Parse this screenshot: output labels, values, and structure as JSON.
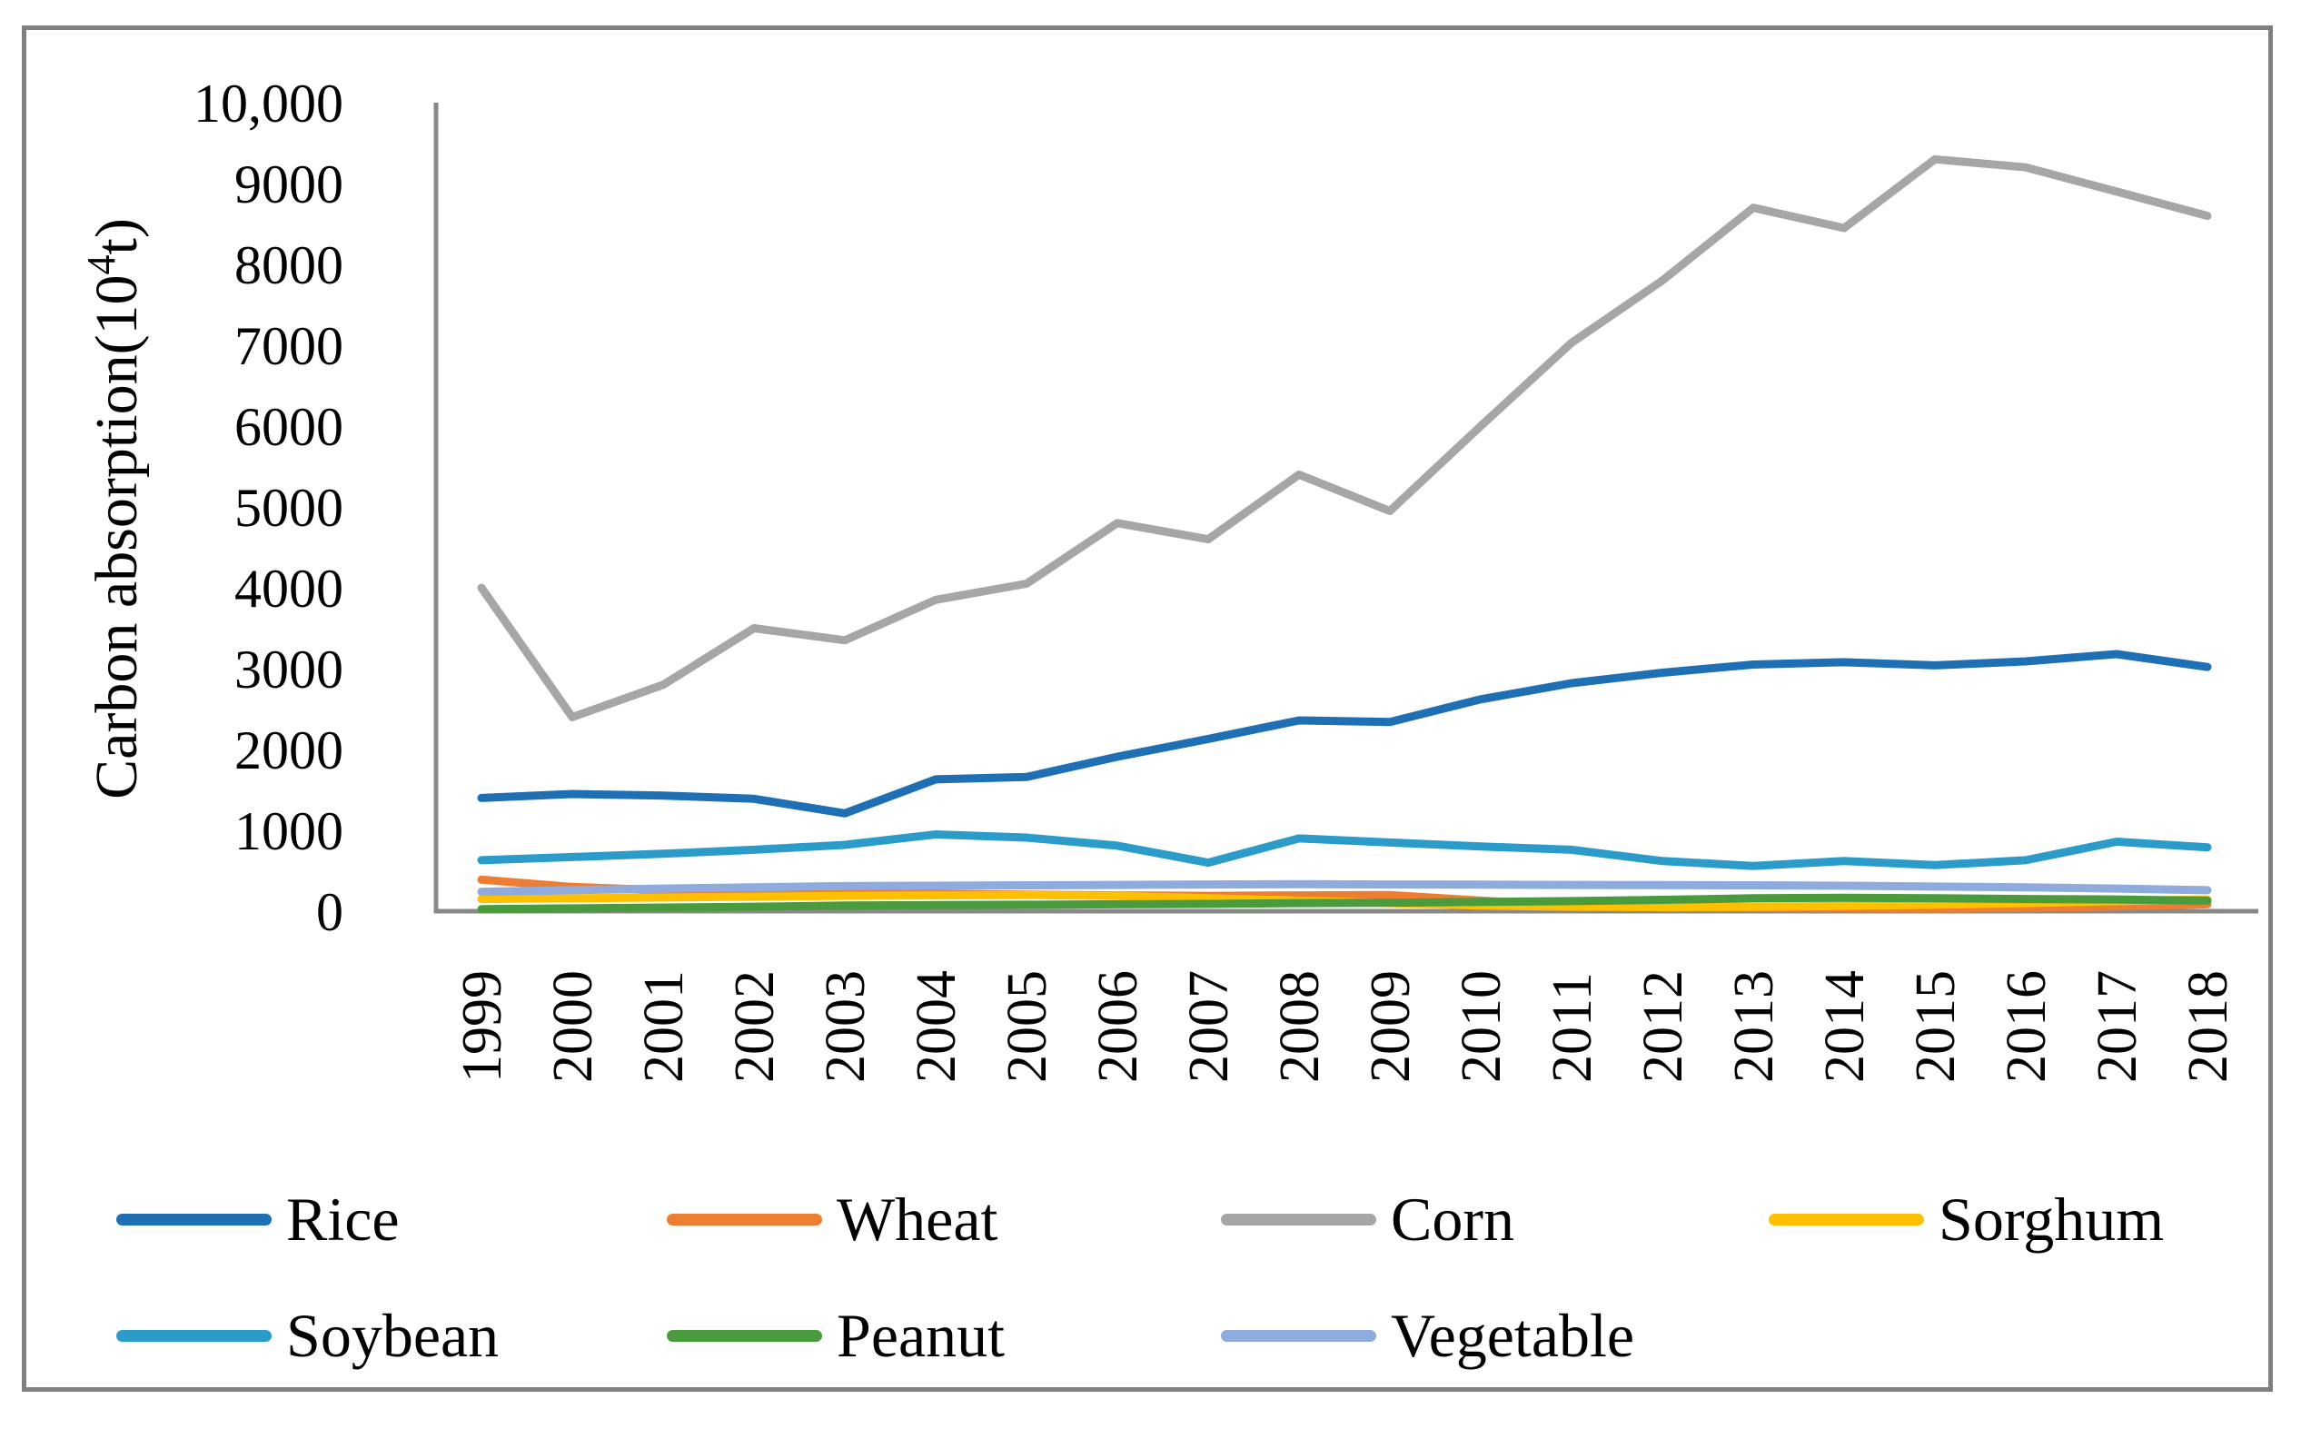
{
  "figure": {
    "background": "#ffffff",
    "border_color": "#7f7f7f",
    "axis_color": "#898989"
  },
  "chart_data": {
    "type": "line",
    "title": "",
    "xlabel": "",
    "ylabel": "Carbon absorption(10⁴t)",
    "ylabel_parts": [
      "Carbon absorption(10",
      "4",
      "t)"
    ],
    "ylim": [
      0,
      10000
    ],
    "grid": "off",
    "legend_position": "bottom",
    "x_tick_rotation": -90,
    "y_ticks": [
      "0",
      "1000",
      "2000",
      "3000",
      "4000",
      "5000",
      "6000",
      "7000",
      "8000",
      "9000",
      "10,000"
    ],
    "categories": [
      "1999",
      "2000",
      "2001",
      "2002",
      "2003",
      "2004",
      "2005",
      "2006",
      "2007",
      "2008",
      "2009",
      "2010",
      "2011",
      "2012",
      "2013",
      "2014",
      "2015",
      "2016",
      "2017",
      "2018"
    ],
    "series": [
      {
        "name": "Rice",
        "color": "#1f6fb5",
        "values": [
          1400,
          1450,
          1430,
          1390,
          1210,
          1630,
          1660,
          1910,
          2130,
          2360,
          2340,
          2620,
          2820,
          2950,
          3050,
          3080,
          3040,
          3090,
          3180,
          3020
        ]
      },
      {
        "name": "Wheat",
        "color": "#ed7d31",
        "values": [
          390,
          300,
          260,
          245,
          230,
          215,
          205,
          195,
          190,
          195,
          200,
          130,
          70,
          45,
          40,
          35,
          30,
          40,
          60,
          85
        ]
      },
      {
        "name": "Corn",
        "color": "#a6a6a6",
        "values": [
          4000,
          2400,
          2800,
          3500,
          3350,
          3850,
          4050,
          4800,
          4600,
          5400,
          4950,
          6000,
          7030,
          7800,
          8700,
          8450,
          9300,
          9200,
          8900,
          8600
        ]
      },
      {
        "name": "Sorghum",
        "color": "#ffc000",
        "values": [
          150,
          160,
          170,
          180,
          190,
          195,
          200,
          190,
          160,
          130,
          100,
          70,
          55,
          50,
          55,
          65,
          80,
          100,
          125,
          145
        ]
      },
      {
        "name": "Soybean",
        "color": "#2b9cc9",
        "values": [
          630,
          670,
          710,
          760,
          820,
          950,
          910,
          810,
          600,
          900,
          850,
          800,
          760,
          620,
          560,
          620,
          570,
          630,
          860,
          790
        ]
      },
      {
        "name": "Peanut",
        "color": "#4a9b3e",
        "values": [
          25,
          35,
          45,
          55,
          70,
          75,
          80,
          85,
          90,
          100,
          105,
          115,
          125,
          140,
          160,
          165,
          160,
          150,
          145,
          130
        ]
      },
      {
        "name": "Vegetable",
        "color": "#8faadc",
        "values": [
          240,
          260,
          280,
          295,
          310,
          315,
          320,
          325,
          330,
          335,
          330,
          328,
          325,
          322,
          320,
          315,
          305,
          295,
          280,
          260
        ]
      }
    ]
  },
  "legend": {
    "rows": [
      [
        "Rice",
        "Wheat",
        "Corn",
        "Sorghum"
      ],
      [
        "Soybean",
        "Peanut",
        "Vegetable"
      ]
    ]
  }
}
